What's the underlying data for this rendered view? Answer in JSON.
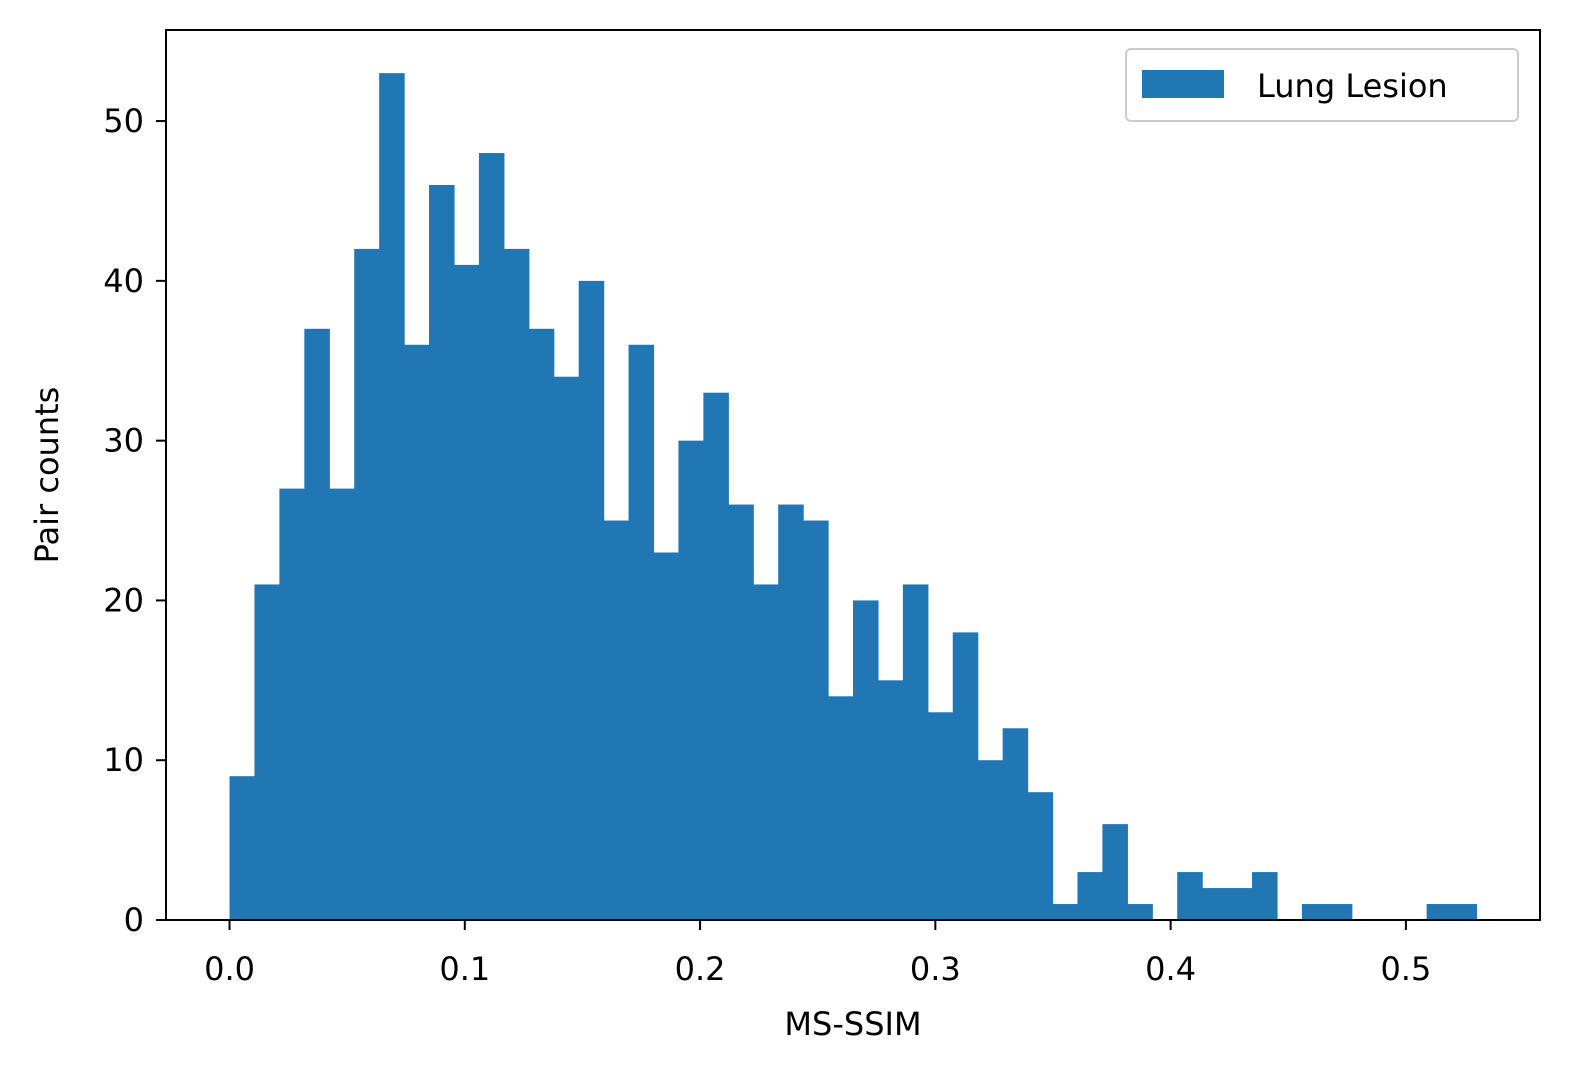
{
  "chart_data": {
    "type": "bar",
    "subtype": "histogram",
    "title": "",
    "xlabel": "MS-SSIM",
    "ylabel": "Pair counts",
    "xlim": [
      -0.027,
      0.557
    ],
    "ylim": [
      0,
      55.7
    ],
    "xticks": [
      0.0,
      0.1,
      0.2,
      0.3,
      0.4,
      0.5
    ],
    "xtick_labels": [
      "0.0",
      "0.1",
      "0.2",
      "0.3",
      "0.4",
      "0.5"
    ],
    "yticks": [
      0,
      10,
      20,
      30,
      40,
      50
    ],
    "ytick_labels": [
      "0",
      "10",
      "20",
      "30",
      "40",
      "50"
    ],
    "bins_start": 0.0,
    "bin_width": 0.0106,
    "grid": false,
    "legend_position": "top-right",
    "series": [
      {
        "name": "Lung Lesion",
        "color": "#2077b4",
        "values": [
          9,
          21,
          27,
          37,
          27,
          42,
          53,
          36,
          46,
          41,
          48,
          42,
          37,
          34,
          40,
          25,
          36,
          23,
          30,
          33,
          26,
          21,
          26,
          25,
          14,
          20,
          15,
          21,
          13,
          18,
          10,
          12,
          8,
          1,
          3,
          6,
          1,
          0,
          3,
          2,
          2,
          3,
          0,
          1,
          1,
          0,
          0,
          0,
          1,
          1
        ]
      }
    ]
  }
}
